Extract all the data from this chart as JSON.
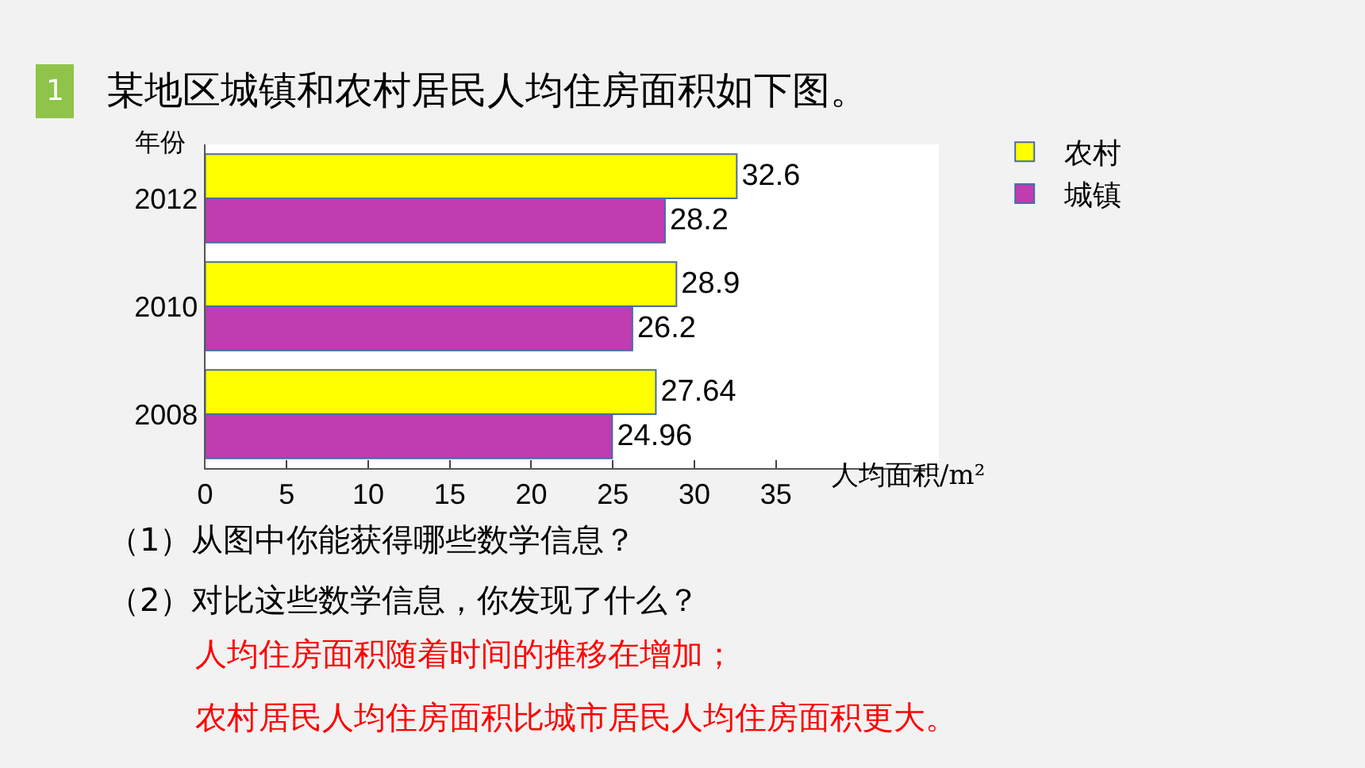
{
  "chart_data": {
    "type": "bar",
    "orientation": "horizontal",
    "title": "某地区城镇和农村居民人均住房面积如下图。",
    "ylabel": "年份",
    "xlabel": "人均面积/m²",
    "categories": [
      "2012",
      "2010",
      "2008"
    ],
    "series": [
      {
        "name": "农村",
        "color": "#ffff00",
        "values": [
          32.6,
          28.9,
          27.64
        ]
      },
      {
        "name": "城镇",
        "color": "#c03cb0",
        "values": [
          28.2,
          26.2,
          24.96
        ]
      }
    ],
    "xlim": [
      0,
      45
    ],
    "xticks": [
      0,
      5,
      10,
      15,
      20,
      25,
      30,
      35
    ],
    "data_labels": true,
    "legend": "right",
    "annotations": [
      "1",
      "（1）从图中你能获得哪些数学信息？",
      "（2）对比这些数学信息，你发现了什么？",
      "人均住房面积随着时间的推移在增加；",
      "农村居民人均住房面积比城市居民人均住房面积更大。"
    ]
  }
}
